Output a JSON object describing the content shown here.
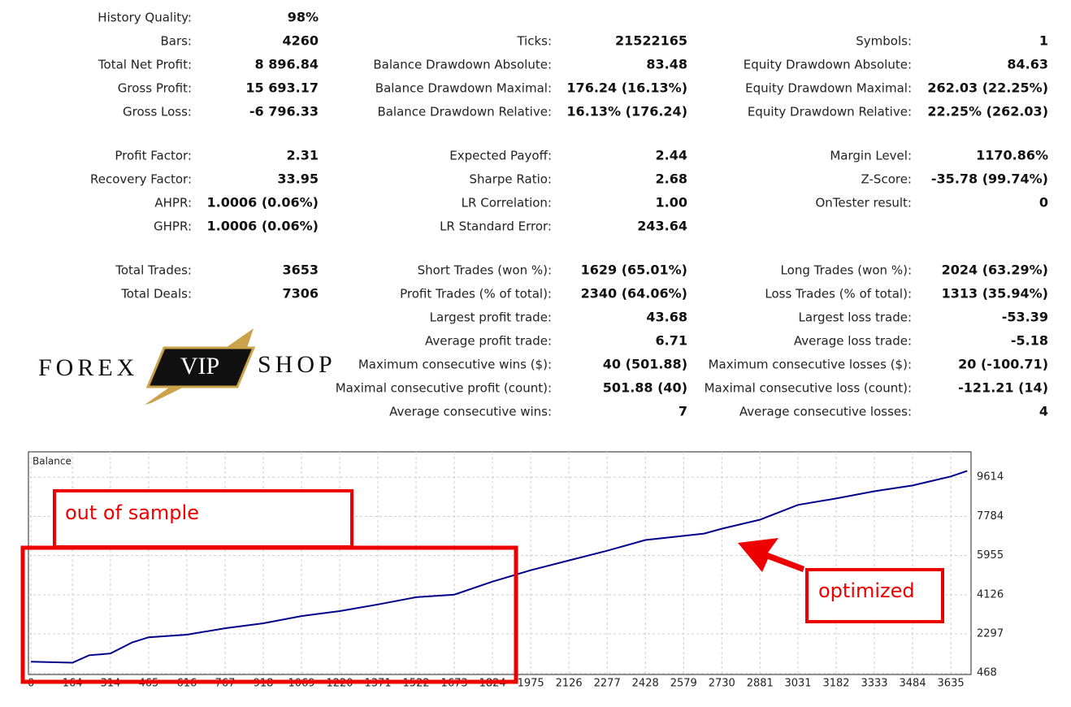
{
  "stats": [
    [
      [
        {
          "label": "History Quality:",
          "value": "98%"
        },
        null,
        null
      ],
      [
        {
          "label": "Bars:",
          "value": "4260"
        },
        {
          "label": "Ticks:",
          "value": "21522165"
        },
        {
          "label": "Symbols:",
          "value": "1"
        }
      ],
      [
        {
          "label": "Total Net Profit:",
          "value": "8 896.84"
        },
        {
          "label": "Balance Drawdown Absolute:",
          "value": "83.48"
        },
        {
          "label": "Equity Drawdown Absolute:",
          "value": "84.63"
        }
      ],
      [
        {
          "label": "Gross Profit:",
          "value": "15 693.17"
        },
        {
          "label": "Balance Drawdown Maximal:",
          "value": "176.24 (16.13%)"
        },
        {
          "label": "Equity Drawdown Maximal:",
          "value": "262.03 (22.25%)"
        }
      ],
      [
        {
          "label": "Gross Loss:",
          "value": "-6 796.33"
        },
        {
          "label": "Balance Drawdown Relative:",
          "value": "16.13% (176.24)"
        },
        {
          "label": "Equity Drawdown Relative:",
          "value": "22.25% (262.03)"
        }
      ]
    ],
    [
      [
        {
          "label": "Profit Factor:",
          "value": "2.31"
        },
        {
          "label": "Expected Payoff:",
          "value": "2.44"
        },
        {
          "label": "Margin Level:",
          "value": "1170.86%"
        }
      ],
      [
        {
          "label": "Recovery Factor:",
          "value": "33.95"
        },
        {
          "label": "Sharpe Ratio:",
          "value": "2.68"
        },
        {
          "label": "Z-Score:",
          "value": "-35.78 (99.74%)"
        }
      ],
      [
        {
          "label": "AHPR:",
          "value": "1.0006 (0.06%)"
        },
        {
          "label": "LR Correlation:",
          "value": "1.00"
        },
        {
          "label": "OnTester result:",
          "value": "0"
        }
      ],
      [
        {
          "label": "GHPR:",
          "value": "1.0006 (0.06%)"
        },
        {
          "label": "LR Standard Error:",
          "value": "243.64"
        },
        null
      ]
    ],
    [
      [
        {
          "label": "Total Trades:",
          "value": "3653"
        },
        {
          "label": "Short Trades (won %):",
          "value": "1629 (65.01%)"
        },
        {
          "label": "Long Trades (won %):",
          "value": "2024 (63.29%)"
        }
      ],
      [
        {
          "label": "Total Deals:",
          "value": "7306"
        },
        {
          "label": "Profit Trades (% of total):",
          "value": "2340 (64.06%)"
        },
        {
          "label": "Loss Trades (% of total):",
          "value": "1313 (35.94%)"
        }
      ],
      [
        null,
        {
          "label": "Largest profit trade:",
          "value": "43.68"
        },
        {
          "label": "Largest loss trade:",
          "value": "-53.39"
        }
      ],
      [
        null,
        {
          "label": "Average profit trade:",
          "value": "6.71"
        },
        {
          "label": "Average loss trade:",
          "value": "-5.18"
        }
      ],
      [
        null,
        {
          "label": "Maximum consecutive wins ($):",
          "value": "40 (501.88)"
        },
        {
          "label": "Maximum consecutive losses ($):",
          "value": "20 (-100.71)"
        }
      ],
      [
        null,
        {
          "label": "Maximal consecutive profit (count):",
          "value": "501.88 (40)"
        },
        {
          "label": "Maximal consecutive loss (count):",
          "value": "-121.21 (14)"
        }
      ],
      [
        null,
        {
          "label": "Average consecutive wins:",
          "value": "7"
        },
        {
          "label": "Average consecutive losses:",
          "value": "4"
        }
      ]
    ]
  ],
  "logo": {
    "left": "FOREX",
    "badge": "VIP",
    "right": "SHOP"
  },
  "chart_data": {
    "type": "line",
    "title": "Balance",
    "color": "#00008b",
    "x": [
      0,
      164,
      230,
      314,
      400,
      465,
      616,
      767,
      918,
      1069,
      1220,
      1371,
      1522,
      1673,
      1824,
      1975,
      2126,
      2277,
      2428,
      2660,
      2730,
      2881,
      3031,
      3182,
      3333,
      3484,
      3635,
      3700
    ],
    "values": [
      1000,
      950,
      1300,
      1380,
      1900,
      2140,
      2260,
      2560,
      2790,
      3130,
      3360,
      3670,
      4010,
      4130,
      4740,
      5270,
      5730,
      6180,
      6680,
      6980,
      7210,
      7630,
      8320,
      8620,
      8960,
      9230,
      9650,
      9910
    ],
    "xlim": [
      -10,
      3715
    ],
    "ylim": [
      400,
      10800
    ],
    "xticks": [
      0,
      164,
      314,
      465,
      616,
      767,
      918,
      1069,
      1220,
      1371,
      1522,
      1673,
      1824,
      1975,
      2126,
      2277,
      2428,
      2579,
      2730,
      2881,
      3031,
      3182,
      3333,
      3484,
      3635
    ],
    "yticks": [
      468,
      2297,
      4126,
      5955,
      7784,
      9614
    ],
    "grid": true,
    "annotations": [
      "out of sample",
      "optimized"
    ]
  }
}
